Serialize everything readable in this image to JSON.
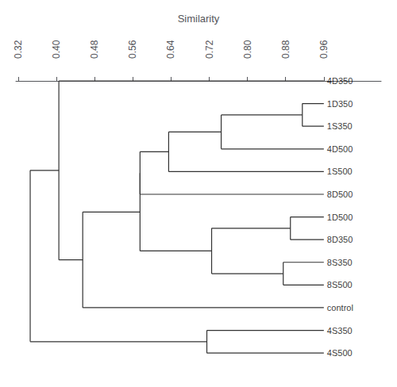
{
  "chart_data": {
    "type": "dendrogram",
    "title": "Similarity",
    "xlim": [
      0.315,
      1.08
    ],
    "xticks": [
      0.32,
      {
        "value": 0.4,
        "label": "0.40"
      },
      0.48,
      0.56,
      0.64,
      0.72,
      {
        "value": 0.8,
        "label": "0.80"
      },
      0.88,
      0.96
    ],
    "grid": false,
    "color": "#333333",
    "leaf_x": 0.96,
    "tree": {
      "x": 0.345,
      "children": [
        {
          "x": 0.405,
          "children": [
            "4D350",
            {
              "x": 0.455,
              "children": [
                {
                  "x": 0.575,
                  "children": [
                    {
                      "x": 0.575,
                      "children": [
                        {
                          "x": 0.635,
                          "children": [
                            {
                              "x": 0.745,
                              "children": [
                                {
                                  "x": 0.915,
                                  "children": [
                                    "1D350",
                                    "1S350"
                                  ]
                                },
                                "4D500"
                              ]
                            },
                            "1S500"
                          ]
                        },
                        "8D500"
                      ]
                    },
                    {
                      "x": 0.725,
                      "children": [
                        {
                          "x": 0.89,
                          "children": [
                            "1D500",
                            "8D350"
                          ]
                        },
                        {
                          "x": 0.875,
                          "children": [
                            "8S350",
                            "8S500"
                          ]
                        }
                      ]
                    }
                  ]
                },
                "control"
              ]
            }
          ]
        },
        {
          "x": 0.715,
          "children": [
            "4S350",
            "4S500"
          ]
        }
      ]
    }
  }
}
